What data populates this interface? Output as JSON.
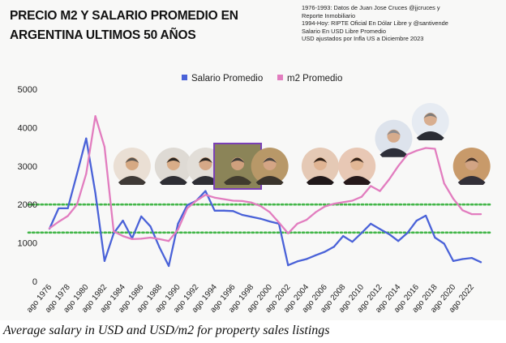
{
  "title_lines": [
    "PRECIO M2 Y SALARIO PROMEDIO EN",
    "ARGENTINA ULTIMOS 50 AÑOS"
  ],
  "notes": [
    "1976-1993: Datos de Juan Jose Cruces @jjcruces y",
    "Reporte Inmobiliario",
    "1994-Hoy: RIPTE Oficial En Dólar Libre y @santivende",
    "Salario En USD Libre Promedio",
    "USD ajustados por Infla US a Diciembre 2023"
  ],
  "caption": "Average salary in USD and USD/m2 for property sales listings",
  "chart_data": {
    "type": "line",
    "title": "PRECIO M2 Y SALARIO PROMEDIO EN ARGENTINA ULTIMOS 50 AÑOS",
    "x_tick_labels": [
      "ago 1976",
      "ago 1978",
      "ago 1980",
      "ago 1982",
      "ago 1984",
      "ago 1986",
      "ago 1988",
      "ago 1990",
      "ago 1992",
      "ago 1994",
      "ago 1996",
      "ago 1998",
      "ago 2000",
      "ago 2002",
      "ago 2004",
      "ago 2006",
      "ago 2008",
      "ago 2010",
      "ago 2012",
      "ago 2014",
      "ago 2016",
      "ago 2018",
      "ago 2020",
      "ago 2022"
    ],
    "x": [
      1976,
      1977,
      1978,
      1979,
      1980,
      1981,
      1982,
      1983,
      1984,
      1985,
      1986,
      1987,
      1988,
      1989,
      1990,
      1991,
      1992,
      1993,
      1994,
      1995,
      1996,
      1997,
      1998,
      1999,
      2000,
      2001,
      2002,
      2003,
      2004,
      2005,
      2006,
      2007,
      2008,
      2009,
      2010,
      2011,
      2012,
      2013,
      2014,
      2015,
      2016,
      2017,
      2018,
      2019,
      2020,
      2021,
      2022,
      2023
    ],
    "ylim": [
      0,
      5000
    ],
    "yticks": [
      0,
      1000,
      2000,
      3000,
      4000,
      5000
    ],
    "grid": false,
    "legend_position": "top",
    "series": [
      {
        "name": "Salario Promedio",
        "color": "#4a62d8",
        "values": [
          1370,
          1900,
          1900,
          2800,
          3720,
          2300,
          530,
          1250,
          1580,
          1120,
          1690,
          1430,
          880,
          400,
          1500,
          1980,
          2100,
          2350,
          1840,
          1840,
          1830,
          1730,
          1680,
          1630,
          1560,
          1500,
          420,
          520,
          580,
          680,
          770,
          900,
          1180,
          1030,
          1260,
          1500,
          1360,
          1230,
          1050,
          1260,
          1580,
          1710,
          1140,
          980,
          530,
          580,
          610,
          500
        ]
      },
      {
        "name": "m2 Promedio",
        "color": "#e27dbf",
        "values": [
          1380,
          1550,
          1700,
          2000,
          2800,
          4300,
          3500,
          1300,
          1180,
          1100,
          1110,
          1140,
          1100,
          1050,
          1350,
          1900,
          2100,
          2250,
          2180,
          2140,
          2100,
          2090,
          2050,
          1960,
          1800,
          1530,
          1250,
          1500,
          1600,
          1800,
          1950,
          2020,
          2060,
          2100,
          2200,
          2480,
          2350,
          2650,
          3000,
          3300,
          3400,
          3470,
          3450,
          2550,
          2150,
          1850,
          1750,
          1750
        ]
      }
    ],
    "reference_lines": [
      {
        "y": 2000,
        "color": "#43b649",
        "style": "dotted"
      },
      {
        "y": 1270,
        "color": "#43b649",
        "style": "dotted"
      }
    ]
  },
  "portraits": [
    {
      "year": 1985,
      "skin": "#d6a983",
      "hair": "#5a5550",
      "bg": "#eadfd4",
      "suit": "#3f3a36",
      "highlighted": false
    },
    {
      "year": 1989.5,
      "skin": "#d9ad88",
      "hair": "#2a2622",
      "bg": "#dedad4",
      "suit": "#2e2e34",
      "highlighted": false
    },
    {
      "year": 1993,
      "skin": "#d5a887",
      "hair": "#2a2622",
      "bg": "#e2ded8",
      "suit": "#2e2e34",
      "highlighted": false
    },
    {
      "year": 1996.5,
      "skin": "#cfa07d",
      "hair": "#3d3a36",
      "bg": "#8b8458",
      "suit": "#403b2e",
      "highlighted": true
    },
    {
      "year": 2000,
      "skin": "#d4a585",
      "hair": "#4a4540",
      "bg": "#b89868",
      "suit": "#3a342c",
      "highlighted": false
    },
    {
      "year": 2005.5,
      "skin": "#e0b493",
      "hair": "#2e1f16",
      "bg": "#e5c9b5",
      "suit": "#20181a",
      "highlighted": false
    },
    {
      "year": 2009.5,
      "skin": "#e2b795",
      "hair": "#36241a",
      "bg": "#e8c8b5",
      "suit": "#26191b",
      "highlighted": false
    },
    {
      "year": 2013.5,
      "skin": "#d6ab8c",
      "hair": "#8a8a8e",
      "bg": "#dde3ec",
      "suit": "#2d2f39",
      "highlighted": false
    },
    {
      "year": 2017.5,
      "skin": "#d8ae90",
      "hair": "#7d7a78",
      "bg": "#e6ebf2",
      "suit": "#2a2c34",
      "highlighted": false
    },
    {
      "year": 2022,
      "skin": "#d2a484",
      "hair": "#4a3628",
      "bg": "#c89a6a",
      "suit": "#333038",
      "highlighted": false
    }
  ]
}
